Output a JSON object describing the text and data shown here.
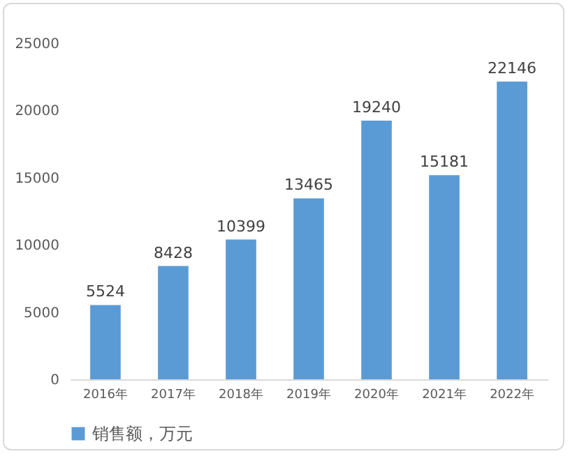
{
  "chart_data": {
    "type": "bar",
    "categories": [
      "2016年",
      "2017年",
      "2018年",
      "2019年",
      "2020年",
      "2021年",
      "2022年"
    ],
    "series": [
      {
        "name": "销售额，万元",
        "color": "#5b9bd5",
        "values": [
          5524,
          8428,
          10399,
          13465,
          19240,
          15181,
          22146
        ]
      }
    ],
    "ylim": [
      0,
      25000
    ],
    "yticks": [
      0,
      5000,
      10000,
      15000,
      20000,
      25000
    ],
    "data_labels": true,
    "legend": "bottom"
  }
}
